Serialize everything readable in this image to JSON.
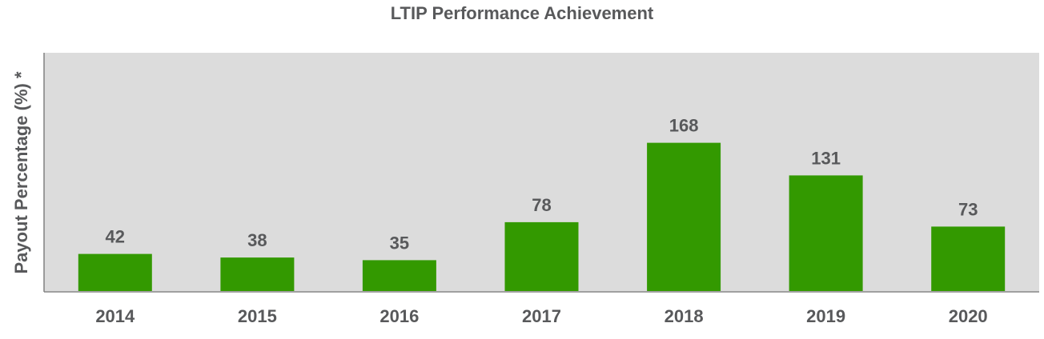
{
  "chart_data": {
    "type": "bar",
    "title": "LTIP Performance Achievement",
    "xlabel": "",
    "ylabel": "Payout Percentage (%) *",
    "categories": [
      "2014",
      "2015",
      "2016",
      "2017",
      "2018",
      "2019",
      "2020"
    ],
    "values": [
      42,
      38,
      35,
      78,
      168,
      131,
      73
    ],
    "ylim": [
      0,
      270
    ],
    "grid": false,
    "legend": "none"
  },
  "colors": {
    "bar": "#339900",
    "plot_background": "#dcdcdc",
    "axis": "#808080",
    "text": "#58595b"
  }
}
